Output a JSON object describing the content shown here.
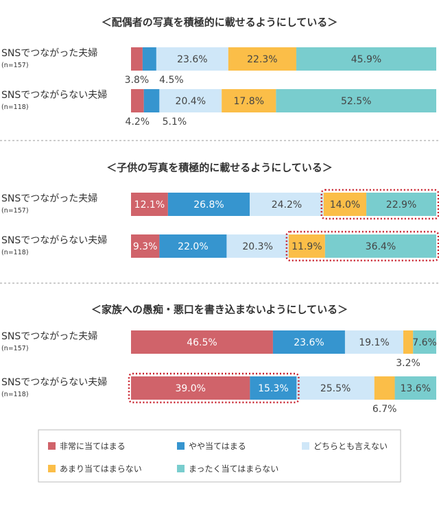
{
  "chart_data": [
    {
      "type": "bar",
      "title": "＜配偶者の写真を積極的に載せるようにしている＞",
      "categories": [
        {
          "name": "SNSでつながった夫婦",
          "n": "(n=157)"
        },
        {
          "name": "SNSでつながらない夫婦",
          "n": "(n=118)"
        }
      ],
      "series_values": [
        [
          3.8,
          4.5,
          23.6,
          22.3,
          45.9
        ],
        [
          4.2,
          5.1,
          20.4,
          17.8,
          52.5
        ]
      ],
      "highlight": []
    },
    {
      "type": "bar",
      "title": "＜子供の写真を積極的に載せるようにしている＞",
      "categories": [
        {
          "name": "SNSでつながった夫婦",
          "n": "(n=157)"
        },
        {
          "name": "SNSでつながらない夫婦",
          "n": "(n=118)"
        }
      ],
      "series_values": [
        [
          12.1,
          26.8,
          24.2,
          14.0,
          22.9
        ],
        [
          9.3,
          22.0,
          20.3,
          11.9,
          36.4
        ]
      ],
      "highlight": [
        [
          0,
          3,
          4
        ],
        [
          1,
          3,
          4
        ]
      ]
    },
    {
      "type": "bar",
      "title": "＜家族への愚痴・悪口を書き込まないようにしている＞",
      "categories": [
        {
          "name": "SNSでつながった夫婦",
          "n": "(n=157)"
        },
        {
          "name": "SNSでつながらない夫婦",
          "n": "(n=118)"
        }
      ],
      "series_values": [
        [
          46.5,
          23.6,
          19.1,
          3.2,
          7.6
        ],
        [
          39.0,
          15.3,
          25.5,
          6.7,
          13.6
        ]
      ],
      "highlight": [
        [
          1,
          0,
          1
        ]
      ]
    }
  ],
  "series": [
    {
      "name": "非常に当てはまる",
      "color": "#d0636a"
    },
    {
      "name": "やや当てはまる",
      "color": "#3695cf"
    },
    {
      "name": "どちらとも言えない",
      "color": "#cfe7f8"
    },
    {
      "name": "あまり当てはまらない",
      "color": "#fbbe48"
    },
    {
      "name": "まったく当てはまらない",
      "color": "#79cdce"
    }
  ],
  "chart_type": "stacked-bar-100",
  "legend_position": "bottom",
  "highlight_color": "#c8202c"
}
